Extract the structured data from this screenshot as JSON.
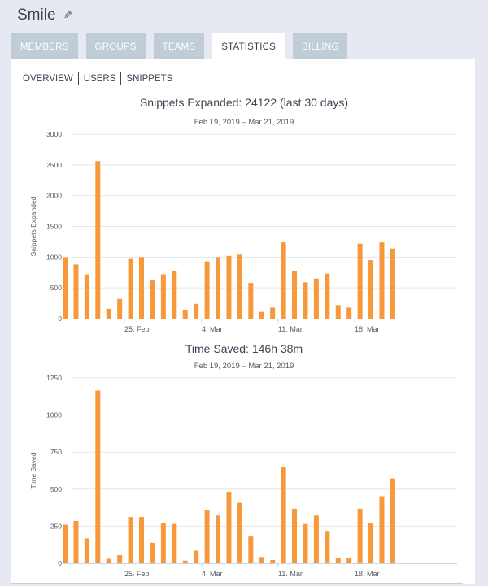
{
  "header": {
    "title": "Smile",
    "edit_icon": "pencil-icon"
  },
  "tabs": [
    {
      "label": "MEMBERS"
    },
    {
      "label": "GROUPS"
    },
    {
      "label": "TEAMS"
    },
    {
      "label": "STATISTICS",
      "active": true
    },
    {
      "label": "BILLING"
    }
  ],
  "subnav": [
    {
      "label": "OVERVIEW"
    },
    {
      "label": "USERS"
    },
    {
      "label": "SNIPPETS"
    }
  ],
  "colors": {
    "bar": "#f7993a",
    "grid": "#e6e6e6",
    "axis": "#ccd6eb"
  },
  "chart_data": [
    {
      "type": "bar",
      "title": "Snippets Expanded: 24122 (last 30 days)",
      "subtitle": "Feb 19, 2019 – Mar 21, 2019",
      "ylabel": "Snippets Expanded",
      "xlabel": "",
      "ylim": [
        0,
        3000
      ],
      "yticks": [
        "0",
        "500",
        "1000",
        "1500",
        "2000",
        "2500",
        "3000"
      ],
      "ytick_values": [
        0,
        500,
        1000,
        1500,
        2000,
        2500,
        3000
      ],
      "x_start": "2019-02-19",
      "x_end": "2019-03-21",
      "xticks": [
        "25. Feb",
        "4. Mar",
        "11. Mar",
        "18. Mar"
      ],
      "grid": true,
      "values": [
        1000,
        880,
        720,
        2560,
        160,
        320,
        970,
        1000,
        630,
        720,
        780,
        140,
        240,
        930,
        1000,
        1020,
        1040,
        580,
        110,
        180,
        1240,
        770,
        590,
        650,
        730,
        220,
        180,
        1220,
        950,
        1240,
        1140
      ]
    },
    {
      "type": "bar",
      "title": "Time Saved: 146h 38m",
      "subtitle": "Feb 19, 2019 – Mar 21, 2019",
      "ylabel": "Time Saved",
      "xlabel": "",
      "ylim": [
        0,
        1250
      ],
      "yticks": [
        "0",
        "250",
        "500",
        "750",
        "1000",
        "1250"
      ],
      "ytick_values": [
        0,
        250,
        500,
        750,
        1000,
        1250
      ],
      "x_start": "2019-02-19",
      "x_end": "2019-03-21",
      "xticks": [
        "25. Feb",
        "4. Mar",
        "11. Mar",
        "18. Mar"
      ],
      "grid": true,
      "values": [
        260,
        285,
        168,
        1165,
        30,
        55,
        312,
        312,
        138,
        272,
        265,
        18,
        85,
        360,
        322,
        482,
        408,
        180,
        42,
        22,
        648,
        368,
        265,
        322,
        218,
        38,
        35,
        368,
        272,
        452,
        572
      ]
    }
  ]
}
